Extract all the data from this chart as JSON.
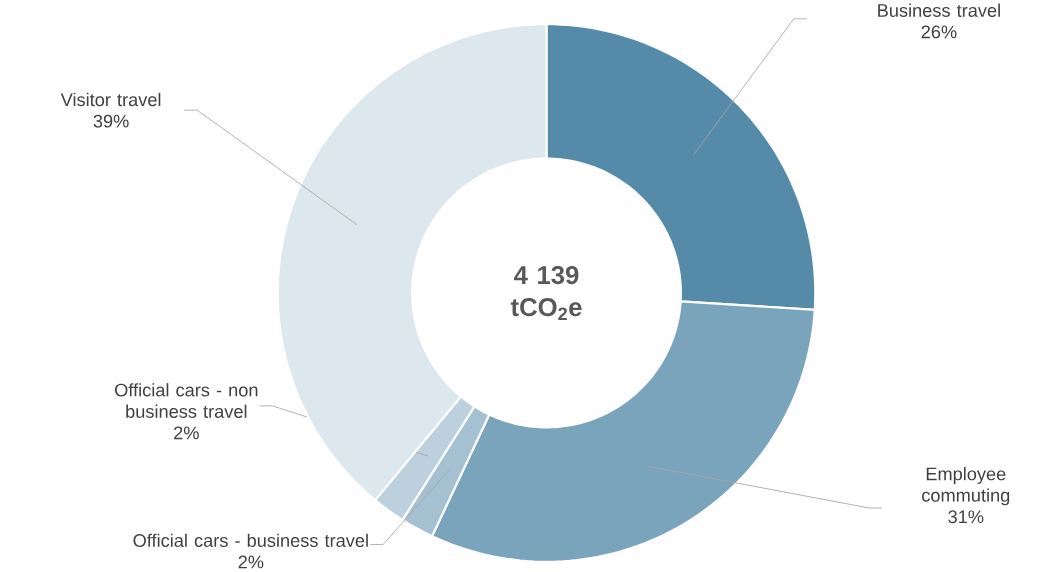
{
  "chart_data": {
    "type": "donut",
    "categories": [
      "Business travel",
      "Employee commuting",
      "Official cars - business travel",
      "Official cars - non business travel",
      "Visitor travel"
    ],
    "values": [
      26,
      31,
      2,
      2,
      39
    ],
    "value_labels": [
      "26%",
      "31%",
      "2%",
      "2%",
      "39%"
    ],
    "colors": [
      "#558ba9",
      "#7aa3bc",
      "#a5c0d1",
      "#bcd0dd",
      "#dce7ee"
    ],
    "annotations": [
      "4 139 tCO$_{2}$e"
    ]
  }
}
